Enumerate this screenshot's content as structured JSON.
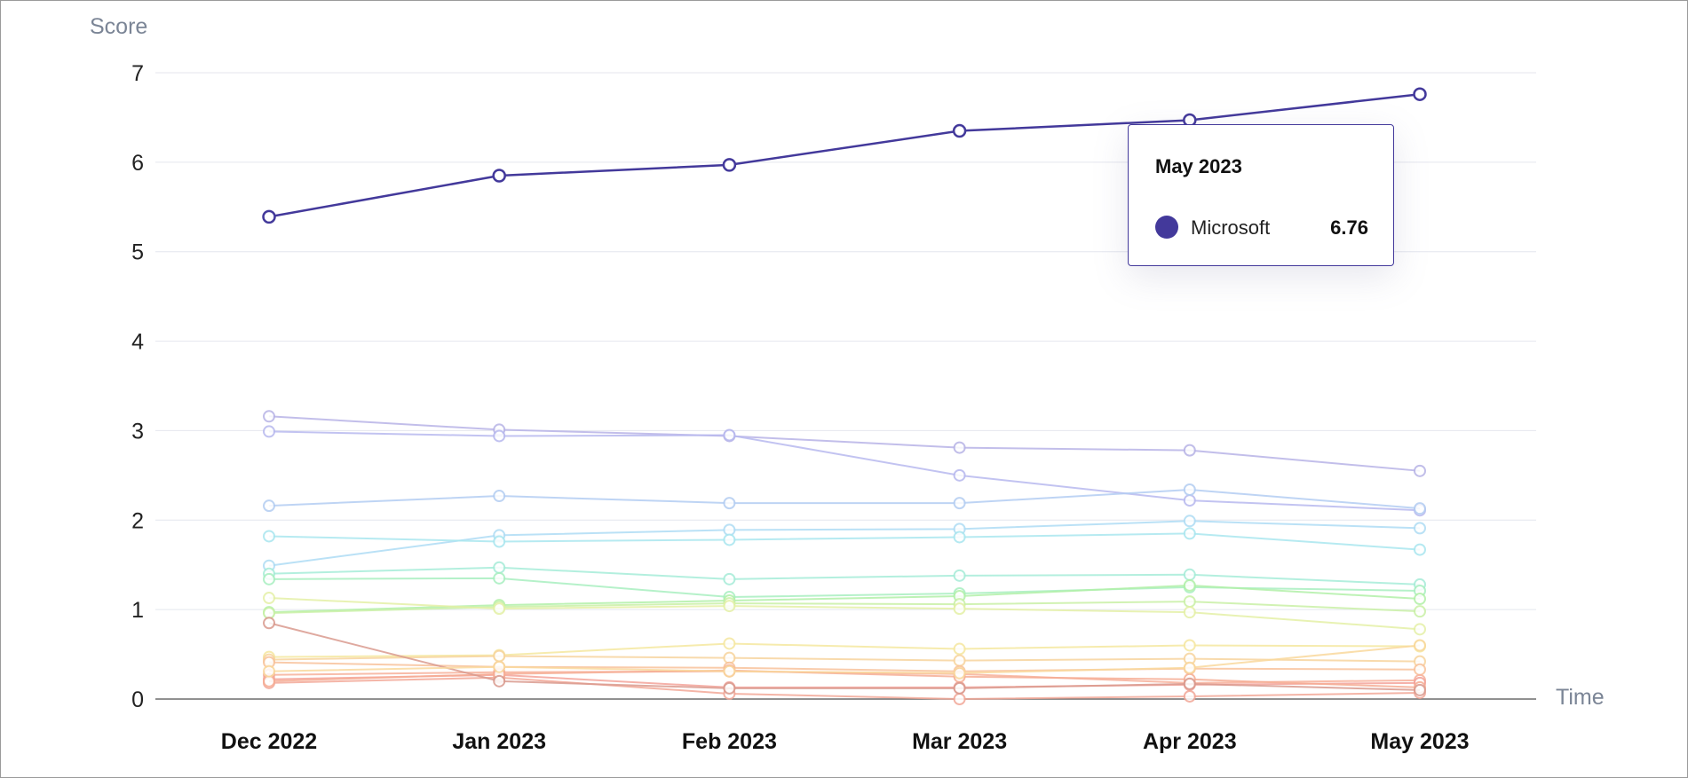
{
  "chart_data": {
    "type": "line",
    "ylabel": "Score",
    "xlabel": "Time",
    "ylim": [
      0,
      7
    ],
    "yticks": [
      0,
      1,
      2,
      3,
      4,
      5,
      6,
      7
    ],
    "grid": true,
    "categories": [
      "Dec 2022",
      "Jan 2023",
      "Feb 2023",
      "Mar 2023",
      "Apr 2023",
      "May 2023"
    ],
    "series": [
      {
        "name": "Microsoft",
        "color": "#43399b",
        "highlight": true,
        "values": [
          5.39,
          5.85,
          5.97,
          6.35,
          6.47,
          6.76
        ]
      },
      {
        "color": "#b7b3e6",
        "values": [
          3.16,
          3.01,
          2.94,
          2.81,
          2.78,
          2.55
        ]
      },
      {
        "color": "#b7b8ee",
        "values": [
          2.99,
          2.94,
          2.95,
          2.5,
          2.22,
          2.11
        ]
      },
      {
        "color": "#b3cdf2",
        "values": [
          2.16,
          2.27,
          2.19,
          2.19,
          2.34,
          2.13
        ]
      },
      {
        "color": "#aedcf4",
        "values": [
          1.49,
          1.83,
          1.89,
          1.9,
          1.99,
          1.91
        ]
      },
      {
        "color": "#a9e6ef",
        "values": [
          1.82,
          1.76,
          1.78,
          1.81,
          1.85,
          1.67
        ]
      },
      {
        "color": "#a6ecd8",
        "values": [
          1.4,
          1.47,
          1.34,
          1.38,
          1.39,
          1.28
        ]
      },
      {
        "color": "#a8efc0",
        "values": [
          1.34,
          1.35,
          1.14,
          1.18,
          1.25,
          1.21
        ]
      },
      {
        "color": "#b2f0a8",
        "values": [
          0.97,
          1.05,
          1.1,
          1.15,
          1.27,
          1.12
        ]
      },
      {
        "color": "#c9f0a6",
        "values": [
          0.96,
          1.03,
          1.07,
          1.06,
          1.09,
          0.98
        ]
      },
      {
        "color": "#e4f0a6",
        "values": [
          1.13,
          1.01,
          1.04,
          1.01,
          0.97,
          0.78
        ]
      },
      {
        "color": "#f5e79f",
        "values": [
          0.47,
          0.49,
          0.62,
          0.56,
          0.6,
          0.59
        ]
      },
      {
        "color": "#f7d49d",
        "values": [
          0.44,
          0.48,
          0.46,
          0.43,
          0.45,
          0.42
        ]
      },
      {
        "color": "#f8c29b",
        "values": [
          0.41,
          0.36,
          0.35,
          0.31,
          0.34,
          0.33
        ]
      },
      {
        "color": "#f7b09a",
        "values": [
          0.27,
          0.3,
          0.31,
          0.28,
          0.18,
          0.21
        ]
      },
      {
        "color": "#f3a39a",
        "values": [
          0.22,
          0.27,
          0.13,
          0.13,
          0.16,
          0.18
        ]
      },
      {
        "color": "#f2a898",
        "values": [
          0.18,
          0.24,
          0.06,
          0.0,
          0.03,
          0.07
        ]
      },
      {
        "color": "#f6ad94",
        "values": [
          0.2,
          0.28,
          0.32,
          0.25,
          0.22,
          0.13
        ]
      },
      {
        "color": "#d99a8e",
        "values": [
          0.85,
          0.2,
          0.12,
          0.12,
          0.17,
          0.1
        ]
      },
      {
        "color": "#f9d89c",
        "values": [
          0.31,
          0.36,
          0.31,
          0.29,
          0.35,
          0.6
        ]
      }
    ],
    "tooltip": {
      "title": "May 2023",
      "series_name": "Microsoft",
      "value": "6.76"
    }
  }
}
